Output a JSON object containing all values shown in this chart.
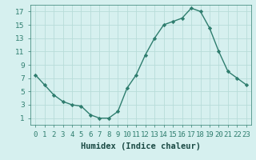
{
  "x": [
    0,
    1,
    2,
    3,
    4,
    5,
    6,
    7,
    8,
    9,
    10,
    11,
    12,
    13,
    14,
    15,
    16,
    17,
    18,
    19,
    20,
    21,
    22,
    23
  ],
  "y": [
    7.5,
    6.0,
    4.5,
    3.5,
    3.0,
    2.8,
    1.5,
    1.0,
    1.0,
    2.0,
    5.5,
    7.5,
    10.5,
    13.0,
    15.0,
    15.5,
    16.0,
    17.5,
    17.0,
    14.5,
    11.0,
    8.0,
    7.0,
    6.0
  ],
  "line_color": "#2e7d6e",
  "marker": "D",
  "marker_size": 2.2,
  "bg_color": "#d6f0ef",
  "grid_color": "#b8dcd9",
  "xlabel": "Humidex (Indice chaleur)",
  "xlabel_fontsize": 7.5,
  "tick_fontsize": 6.5,
  "ylim": [
    0,
    18
  ],
  "xlim": [
    -0.5,
    23.5
  ],
  "yticks": [
    1,
    3,
    5,
    7,
    9,
    11,
    13,
    15,
    17
  ],
  "xtick_labels": [
    "0",
    "1",
    "2",
    "3",
    "4",
    "5",
    "6",
    "7",
    "8",
    "9",
    "10",
    "11",
    "12",
    "13",
    "14",
    "15",
    "16",
    "17",
    "18",
    "19",
    "20",
    "21",
    "22",
    "23"
  ],
  "linewidth": 1.0
}
